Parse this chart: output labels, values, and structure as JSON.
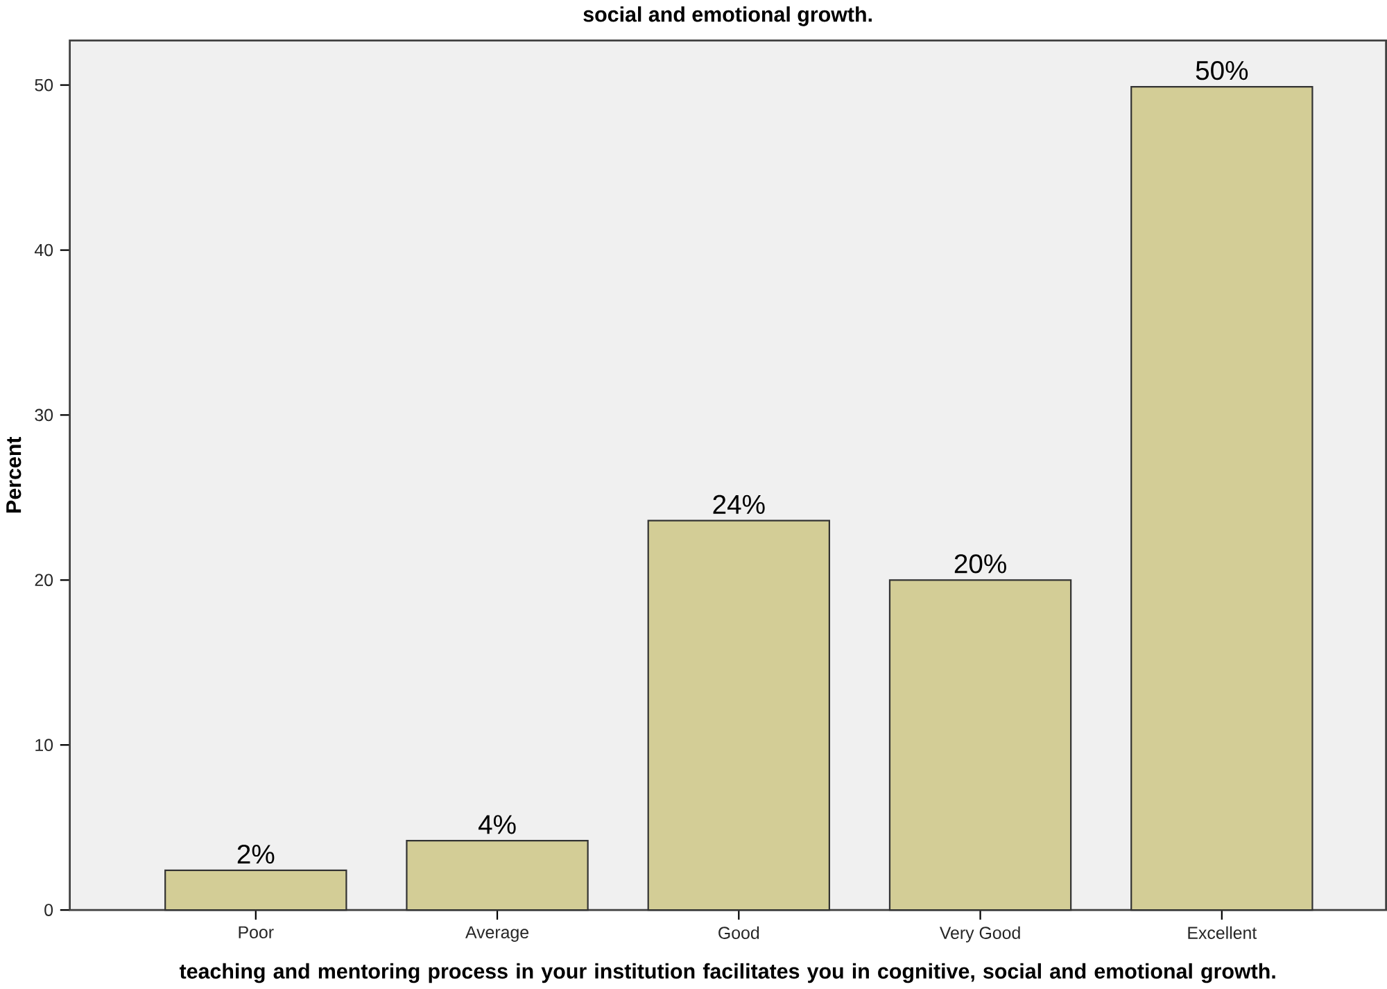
{
  "chart_data": {
    "type": "bar",
    "title": "social and emotional growth.",
    "xlabel": "teaching and mentoring process in your institution facilitates you in cognitive, social and emotional growth.",
    "ylabel": "Percent",
    "categories": [
      "Poor",
      "Average",
      "Good",
      "Very Good",
      "Excellent"
    ],
    "values": [
      2.4,
      4.2,
      23.6,
      20.0,
      49.9
    ],
    "value_labels": [
      "2%",
      "4%",
      "24%",
      "20%",
      "50%"
    ],
    "color": "#d3cd96",
    "ylim": [
      0,
      52.7
    ],
    "yticks": [
      0,
      10,
      20,
      30,
      40,
      50
    ]
  }
}
